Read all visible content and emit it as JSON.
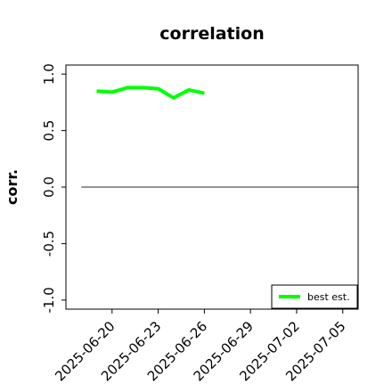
{
  "chart_data": {
    "type": "line",
    "title": "correlation",
    "xlabel": "",
    "ylabel": "corr.",
    "x_type": "date",
    "xlim": [
      "2025-06-17",
      "2025-07-06"
    ],
    "ylim": [
      -1.08,
      1.08
    ],
    "x_ticks": [
      "2025-06-20",
      "2025-06-23",
      "2025-06-26",
      "2025-06-29",
      "2025-07-02",
      "2025-07-05"
    ],
    "x_tick_colors": [
      "#000000",
      "#000000",
      "#228b22",
      "#000000",
      "#000000",
      "#000000"
    ],
    "y_ticks": [
      -1.0,
      -0.5,
      0.0,
      0.5,
      1.0
    ],
    "y_tick_labels": [
      "-1.0",
      "-0.5",
      "0.0",
      "0.5",
      "1.0"
    ],
    "grid": false,
    "legend": {
      "position": "bottom-right"
    },
    "series": [
      {
        "name": "best est.",
        "color": "#00ff00",
        "x": [
          "2025-06-19",
          "2025-06-20",
          "2025-06-21",
          "2025-06-22",
          "2025-06-23",
          "2025-06-24",
          "2025-06-25",
          "2025-06-26"
        ],
        "y": [
          0.85,
          0.84,
          0.88,
          0.88,
          0.87,
          0.79,
          0.86,
          0.83
        ]
      }
    ],
    "reference_lines": [
      {
        "y": 0.0,
        "x_range": [
          "2025-06-18",
          "2025-07-06"
        ],
        "color": "#555555"
      }
    ]
  }
}
